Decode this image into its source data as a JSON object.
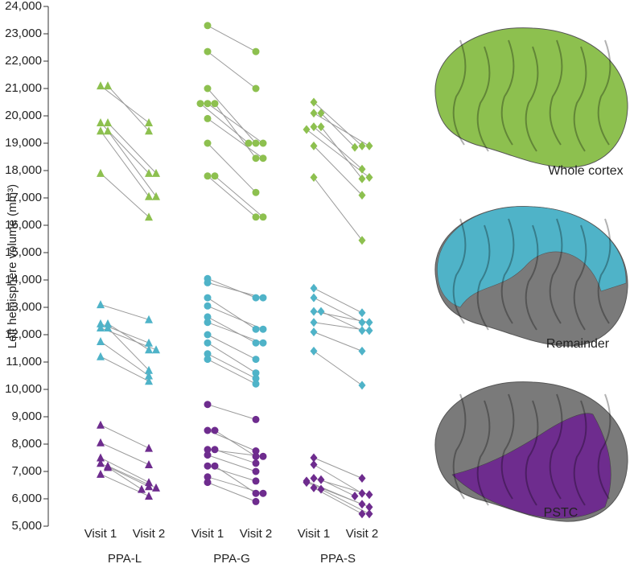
{
  "chart_data": {
    "type": "paired",
    "ylabel": "Left hemisphere volume (mm³)",
    "ylim": [
      5000,
      24000
    ],
    "yticks": [
      {
        "value": 5000,
        "label": "5,000"
      },
      {
        "value": 6000,
        "label": "6,000"
      },
      {
        "value": 7000,
        "label": "7,000"
      },
      {
        "value": 8000,
        "label": "8,000"
      },
      {
        "value": 9000,
        "label": "9,000"
      },
      {
        "value": 10000,
        "label": "10,000"
      },
      {
        "value": 11000,
        "label": "11,000"
      },
      {
        "value": 12000,
        "label": "12,000"
      },
      {
        "value": 13000,
        "label": "13,000"
      },
      {
        "value": 14000,
        "label": "14,000"
      },
      {
        "value": 15000,
        "label": "15,000"
      },
      {
        "value": 16000,
        "label": "16,000"
      },
      {
        "value": 17000,
        "label": "17,000"
      },
      {
        "value": 18000,
        "label": "18,000"
      },
      {
        "value": 19000,
        "label": "19,000"
      },
      {
        "value": 20000,
        "label": "20,000"
      },
      {
        "value": 21000,
        "label": "21,000"
      },
      {
        "value": 22000,
        "label": "22,000"
      },
      {
        "value": 23000,
        "label": "23,000"
      },
      {
        "value": 24000,
        "label": "24,000"
      }
    ],
    "groups": [
      {
        "name": "PPA-L",
        "marker": "triangle",
        "visits": [
          "Visit 1",
          "Visit 2"
        ]
      },
      {
        "name": "PPA-G",
        "marker": "circle",
        "visits": [
          "Visit 1",
          "Visit 2"
        ]
      },
      {
        "name": "PPA-S",
        "marker": "diamond",
        "visits": [
          "Visit 1",
          "Visit 2"
        ]
      }
    ],
    "series": [
      {
        "name": "Whole cortex",
        "color": "#8dc04f",
        "groups": [
          [
            [
              21100,
              19750
            ],
            [
              21100,
              19450
            ],
            [
              19750,
              17900
            ],
            [
              19750,
              17900
            ],
            [
              19450,
              17050
            ],
            [
              19450,
              17050
            ],
            [
              17900,
              16300
            ]
          ],
          [
            [
              23300,
              22350
            ],
            [
              22350,
              21000
            ],
            [
              21000,
              19000
            ],
            [
              20450,
              19000
            ],
            [
              20450,
              18450
            ],
            [
              20450,
              19000
            ],
            [
              19900,
              18450
            ],
            [
              19000,
              17200
            ],
            [
              17800,
              16300
            ],
            [
              17800,
              16300
            ]
          ],
          [
            [
              20500,
              18900
            ],
            [
              20100,
              18900
            ],
            [
              20100,
              18850
            ],
            [
              19600,
              18050
            ],
            [
              19600,
              17700
            ],
            [
              19500,
              17750
            ],
            [
              18900,
              17100
            ],
            [
              17750,
              15450
            ]
          ]
        ]
      },
      {
        "name": "Remainder",
        "color": "#4fb3c8",
        "groups": [
          [
            [
              13100,
              12550
            ],
            [
              12400,
              11700
            ],
            [
              12400,
              11450
            ],
            [
              12250,
              11450
            ],
            [
              12250,
              10700
            ],
            [
              11750,
              10500
            ],
            [
              11200,
              10300
            ]
          ],
          [
            [
              14050,
              13350
            ],
            [
              13900,
              13350
            ],
            [
              13350,
              12200
            ],
            [
              13050,
              12200
            ],
            [
              12650,
              11700
            ],
            [
              12450,
              11700
            ],
            [
              12000,
              11100
            ],
            [
              11700,
              10600
            ],
            [
              11300,
              10400
            ],
            [
              11100,
              10200
            ]
          ],
          [
            [
              13700,
              12800
            ],
            [
              13350,
              12450
            ],
            [
              12850,
              12450
            ],
            [
              12850,
              12150
            ],
            [
              12450,
              12150
            ],
            [
              12100,
              11400
            ],
            [
              11400,
              10150
            ]
          ]
        ]
      },
      {
        "name": "PSTC",
        "color": "#6e2c8e",
        "groups": [
          [
            [
              8700,
              7850
            ],
            [
              8050,
              7250
            ],
            [
              7500,
              6600
            ],
            [
              7300,
              6450
            ],
            [
              7200,
              6400
            ],
            [
              7150,
              6350
            ],
            [
              6900,
              6100
            ]
          ],
          [
            [
              9450,
              8900
            ],
            [
              8500,
              7750
            ],
            [
              8500,
              7550
            ],
            [
              7800,
              7550
            ],
            [
              7800,
              7300
            ],
            [
              7600,
              7000
            ],
            [
              7200,
              6650
            ],
            [
              7200,
              6200
            ],
            [
              6800,
              6200
            ],
            [
              6600,
              5900
            ]
          ],
          [
            [
              7500,
              6750
            ],
            [
              7250,
              6200
            ],
            [
              6750,
              6150
            ],
            [
              6700,
              6100
            ],
            [
              6650,
              5800
            ],
            [
              6600,
              5700
            ],
            [
              6400,
              5450
            ],
            [
              6350,
              5450
            ]
          ]
        ]
      }
    ]
  }
}
